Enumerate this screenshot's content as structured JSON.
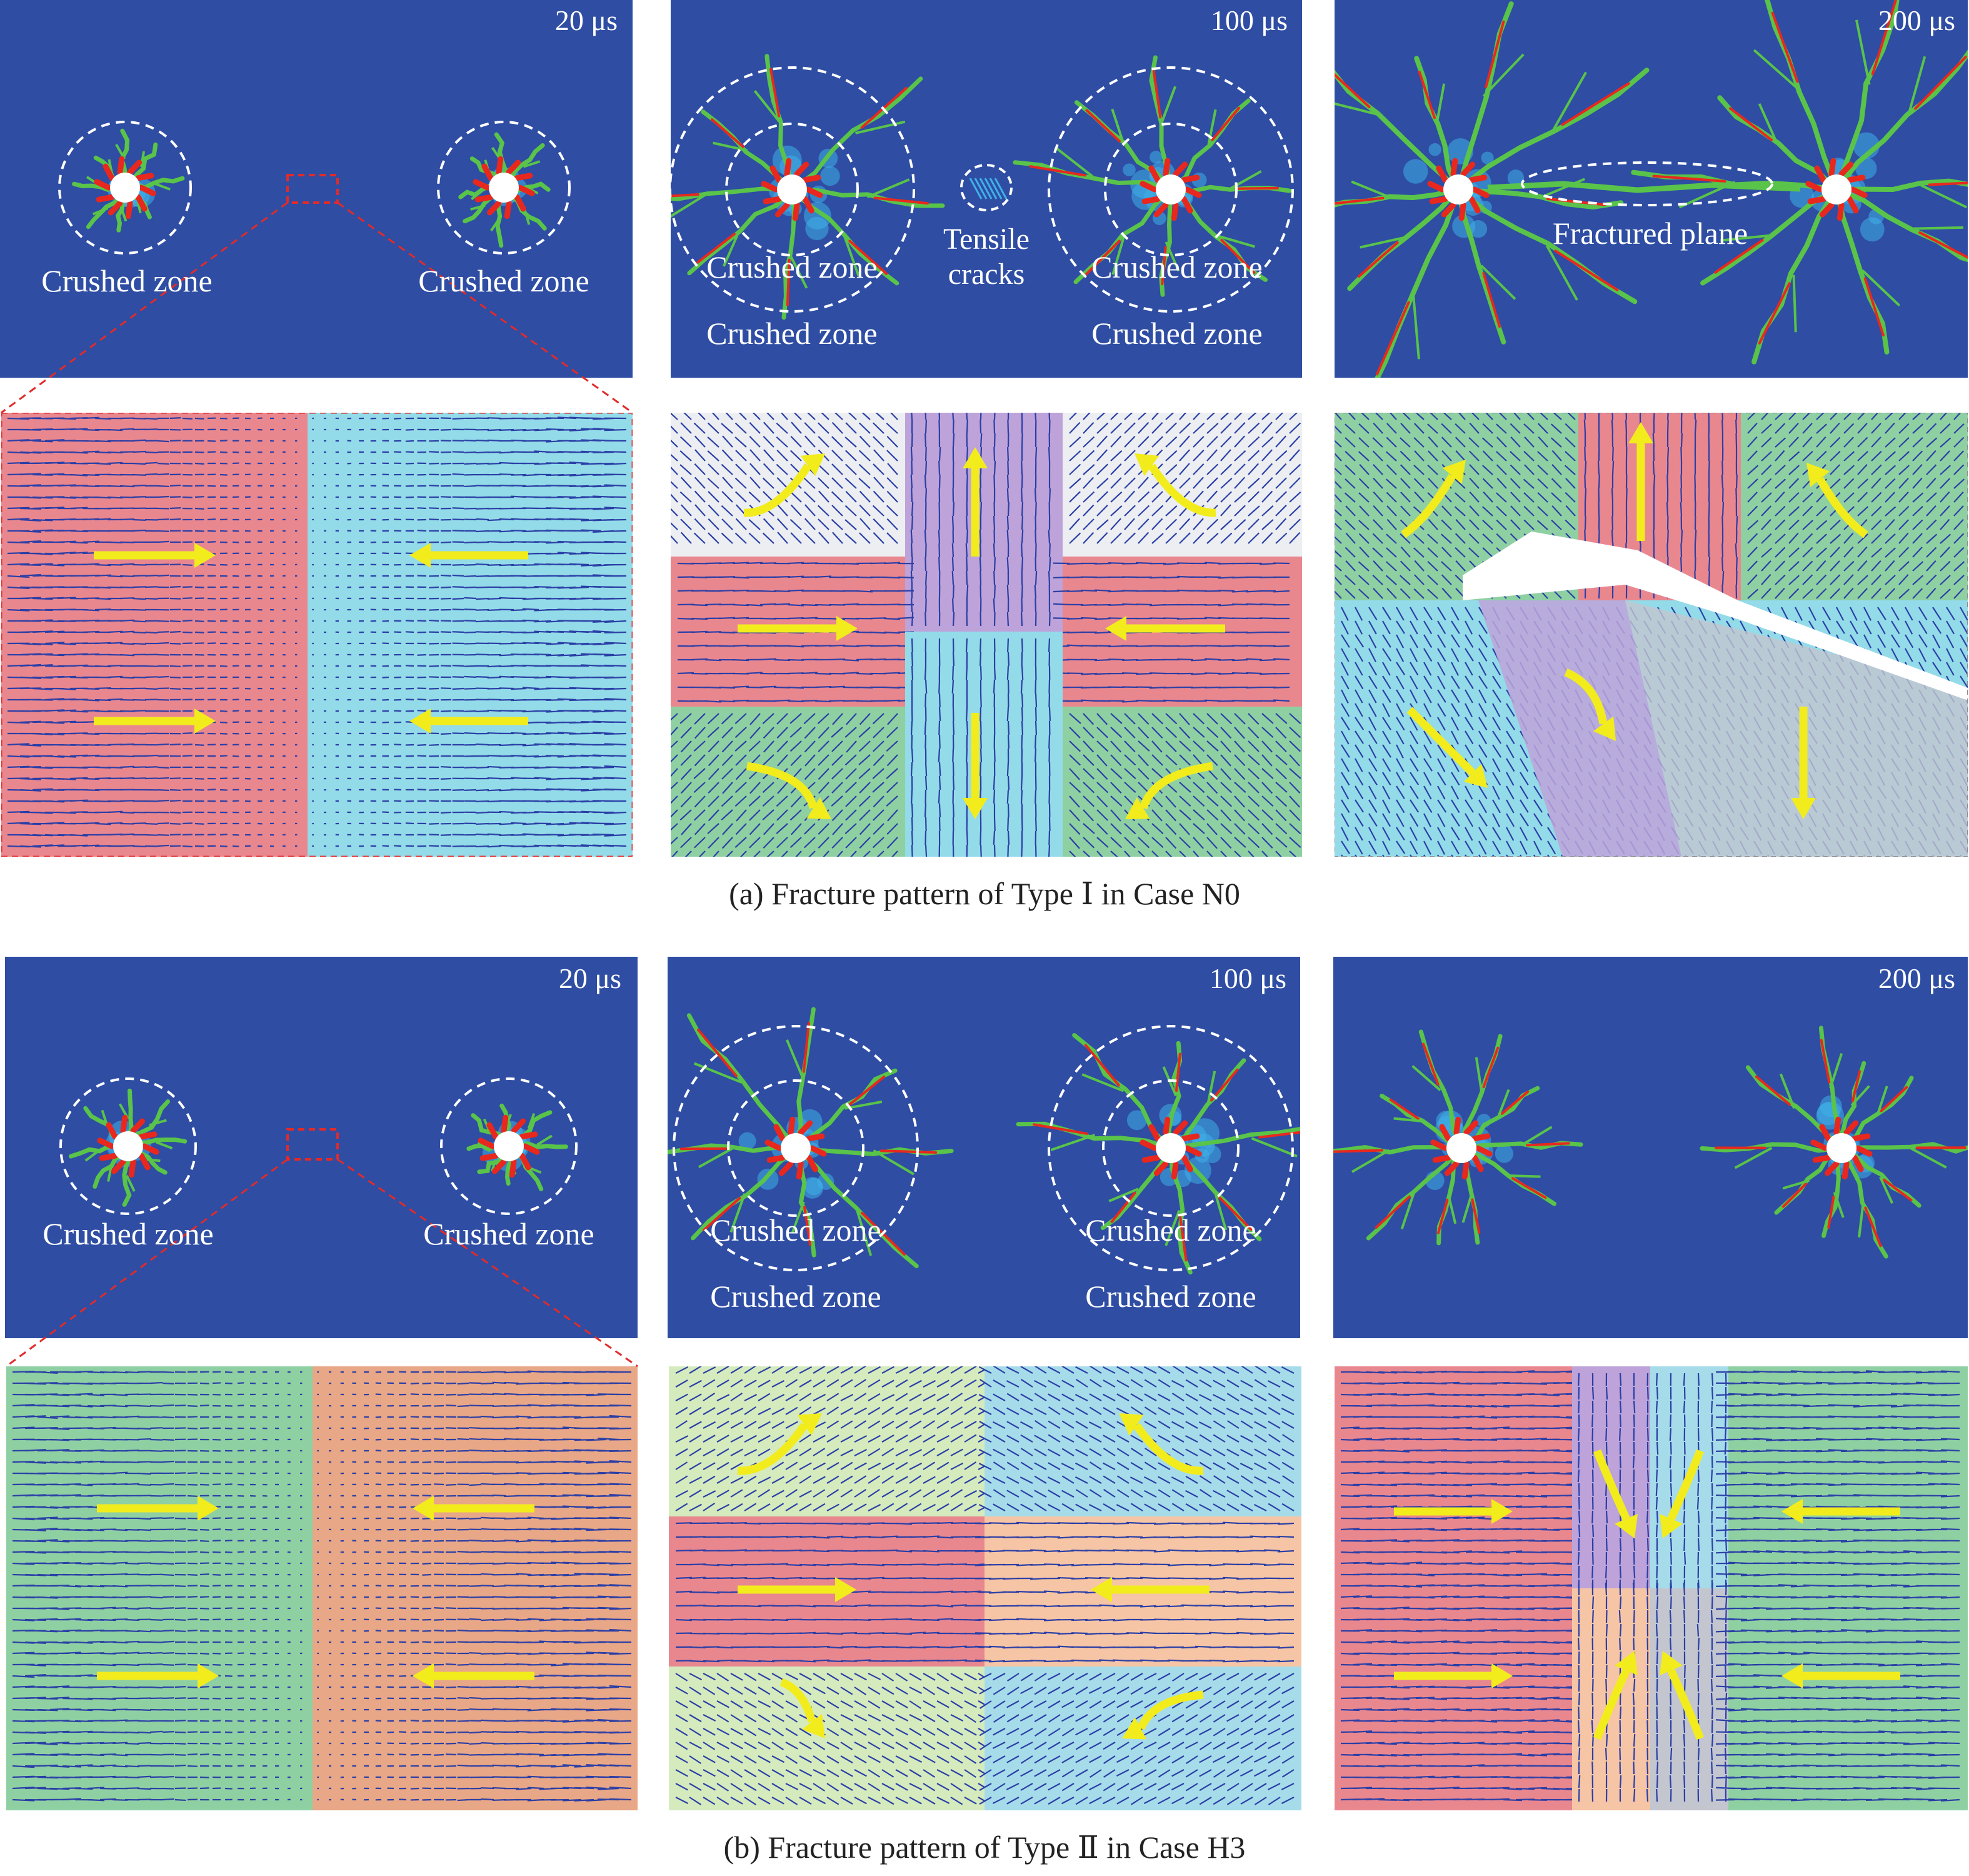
{
  "figure": {
    "row_a": {
      "caption": "(a) Fracture pattern of Type Ⅰ in Case N0",
      "panels": [
        {
          "time": "20 μs",
          "labels": [
            "Crushed zone",
            "Crushed zone"
          ]
        },
        {
          "time": "100 μs",
          "labels": [
            "Crushed zone",
            "Crushed zone",
            "Tensile",
            "cracks",
            "Crushed zone",
            "Crushed zone"
          ]
        },
        {
          "time": "200 μs",
          "labels": [
            "Fractured plane"
          ]
        }
      ]
    },
    "row_b": {
      "caption": "(b) Fracture pattern of Type Ⅱ in Case H3",
      "panels": [
        {
          "time": "20 μs",
          "labels": [
            "Crushed zone",
            "Crushed zone"
          ]
        },
        {
          "time": "100 μs",
          "labels": [
            "Crushed zone",
            "Crushed zone",
            "Crushed zone",
            "Crushed zone"
          ]
        },
        {
          "time": "200 μs",
          "labels": []
        }
      ]
    }
  },
  "colors": {
    "panel_background": "#2e4da3",
    "crack_green": "#59c34a",
    "crack_red": "#e8281e",
    "crack_cyan": "#3fb0e8",
    "dashed_circle": "#ffffff",
    "zoom_box": "#e12b2b",
    "arrow_yellow": "#f2ec1d",
    "vector_arrows": "#2b3fa6",
    "zone_pink": "#e9878f",
    "zone_cyan": "#93dbe8",
    "zone_white": "#eceef2",
    "zone_purple": "#bda3d9",
    "zone_green": "#8fd0a3",
    "zone_salmon": "#e8a786",
    "zone_lightgreen": "#d5ebbe",
    "zone_lightblue": "#a6dcea",
    "zone_peach": "#f6c5a5",
    "zone_grey": "#c3c6cf"
  }
}
